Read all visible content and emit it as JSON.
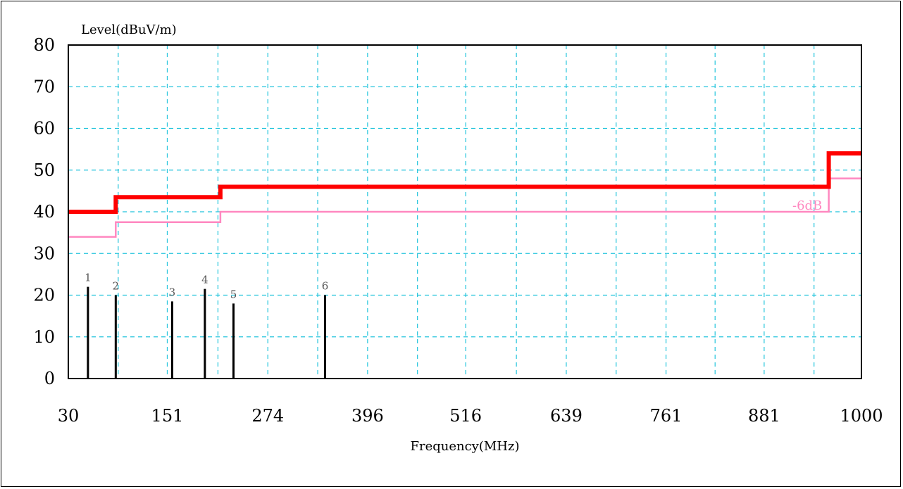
{
  "chart_data": {
    "type": "line",
    "ylabel": "Level(dBuV/m)",
    "xlabel": "Frequency(MHz)",
    "xlim": [
      30,
      1000
    ],
    "ylim": [
      0,
      80
    ],
    "x_ticks": [
      30,
      151,
      274,
      396,
      516,
      639,
      761,
      881,
      1000
    ],
    "y_ticks": [
      0,
      10,
      20,
      30,
      40,
      50,
      60,
      70,
      80
    ],
    "grid": true,
    "grid_x_extra": [
      91,
      213,
      335,
      457,
      578,
      700,
      821,
      942
    ],
    "limit_line": {
      "color": "#ff0000",
      "points": [
        [
          30,
          40
        ],
        [
          88,
          40
        ],
        [
          88,
          43.5
        ],
        [
          216,
          43.5
        ],
        [
          216,
          46
        ],
        [
          960,
          46
        ],
        [
          960,
          54
        ],
        [
          1000,
          54
        ]
      ]
    },
    "margin_line": {
      "label": "-6dB",
      "color": "#ff88c0",
      "points": [
        [
          30,
          34
        ],
        [
          88,
          34
        ],
        [
          88,
          37.5
        ],
        [
          216,
          37.5
        ],
        [
          216,
          40
        ],
        [
          960,
          40
        ],
        [
          960,
          48
        ],
        [
          1000,
          48
        ]
      ]
    },
    "peaks": [
      {
        "label": "1",
        "x": 54,
        "y": 22
      },
      {
        "label": "2",
        "x": 88,
        "y": 20
      },
      {
        "label": "3",
        "x": 157,
        "y": 18.5
      },
      {
        "label": "4",
        "x": 197,
        "y": 21.5
      },
      {
        "label": "5",
        "x": 232,
        "y": 18
      },
      {
        "label": "6",
        "x": 344,
        "y": 20
      }
    ]
  }
}
